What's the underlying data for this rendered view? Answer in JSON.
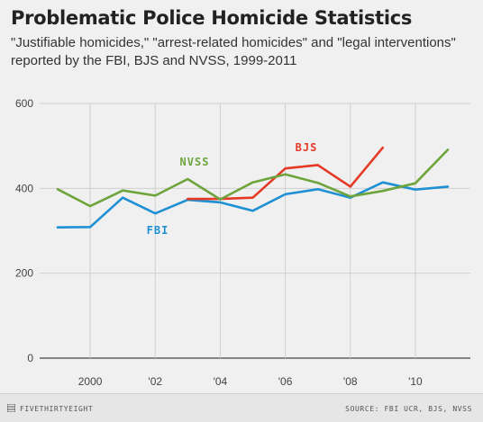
{
  "title": "Problematic Police Homicide Statistics",
  "subtitle": "\"Justifiable homicides,\" \"arrest-related homicides\" and \"legal interventions\" reported by the FBI, BJS and NVSS, 1999-2011",
  "footer": {
    "logo": "FIVETHIRTYEIGHT",
    "source": "SOURCE: FBI UCR, BJS, NVSS"
  },
  "colors": {
    "FBI": "#1f90d3",
    "BJS": "#e53a26",
    "NVSS": "#6ea43c"
  },
  "chart_data": {
    "type": "line",
    "title": "Problematic Police Homicide Statistics",
    "ylim": [
      0,
      600
    ],
    "xlim": [
      1999,
      2011
    ],
    "yticks": [
      0,
      200,
      400,
      600
    ],
    "xticks": [
      {
        "value": 2000,
        "label": "2000"
      },
      {
        "value": 2002,
        "label": "'02"
      },
      {
        "value": 2004,
        "label": "'04"
      },
      {
        "value": 2006,
        "label": "'06"
      },
      {
        "value": 2008,
        "label": "'08"
      },
      {
        "value": 2010,
        "label": "'10"
      }
    ],
    "grid": true,
    "series": [
      {
        "name": "FBI",
        "x": [
          1999,
          2000,
          2001,
          2002,
          2003,
          2004,
          2005,
          2006,
          2007,
          2008,
          2009,
          2010,
          2011
        ],
        "y": [
          308,
          309,
          378,
          341,
          373,
          367,
          347,
          386,
          398,
          378,
          414,
          397,
          404
        ]
      },
      {
        "name": "BJS",
        "x": [
          2003,
          2004,
          2005,
          2006,
          2007,
          2008,
          2009
        ],
        "y": [
          375,
          375,
          378,
          447,
          455,
          404,
          496
        ]
      },
      {
        "name": "NVSS",
        "x": [
          1999,
          2000,
          2001,
          2002,
          2003,
          2004,
          2005,
          2006,
          2007,
          2008,
          2009,
          2010,
          2011
        ],
        "y": [
          398,
          358,
          395,
          383,
          422,
          374,
          414,
          433,
          413,
          381,
          394,
          412,
          491
        ]
      }
    ]
  }
}
